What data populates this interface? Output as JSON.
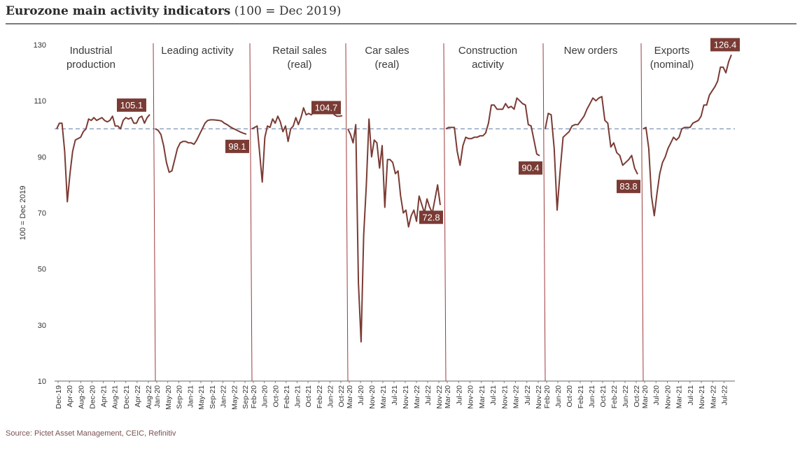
{
  "title": {
    "bold": "Eurozone main activity indicators",
    "rest": "(100 = Dec 2019)"
  },
  "source": "Source: Pictet Asset Management, CEIC, Refinitiv",
  "colors": {
    "line": "#7a3b34",
    "separator": "#9c3a3a",
    "reference": "#8fa3c4",
    "label_bg": "#7a3b34",
    "axis": "#666666"
  },
  "chart_data": {
    "type": "line",
    "ylabel": "100 = Dec 2019",
    "ylim": [
      10,
      130
    ],
    "yticks": [
      10,
      30,
      50,
      70,
      90,
      110,
      130
    ],
    "reference_line": 100,
    "panels": [
      {
        "name": "Industrial production",
        "title_lines": [
          "Industrial",
          "production"
        ],
        "xticks": [
          "Dec-19",
          "Apr-20",
          "Aug-20",
          "Dec-20",
          "Apr-21",
          "Aug-21",
          "Dec-21",
          "Apr-22",
          "Aug-22"
        ],
        "values": [
          100,
          102,
          102,
          92,
          74,
          84,
          92,
          96,
          96.5,
          97,
          99,
          100,
          103.5,
          103,
          104,
          103,
          103.5,
          104,
          103,
          102.5,
          103,
          104.5,
          101,
          101,
          100,
          103,
          104,
          103.5,
          104,
          102,
          102,
          104,
          104.5,
          102,
          104,
          105.1
        ],
        "last_label": "105.1"
      },
      {
        "name": "Leading activity",
        "title_lines": [
          "Leading activity"
        ],
        "xticks": [
          "Jan-20",
          "May-20",
          "Sep-20",
          "Jan-21",
          "May-21",
          "Sep-21",
          "Jan-22",
          "May-22",
          "Sep-22"
        ],
        "values": [
          100,
          99.5,
          98,
          94,
          88,
          84.5,
          85,
          89,
          93,
          95,
          95.5,
          95.5,
          95,
          95,
          94.5,
          96,
          98,
          100,
          102,
          103,
          103.2,
          103.2,
          103.1,
          103,
          102.8,
          102,
          101.5,
          100.8,
          100.2,
          99.8,
          99.3,
          98.8,
          98.4,
          98.1
        ],
        "last_label": "98.1"
      },
      {
        "name": "Retail sales (real)",
        "title_lines": [
          "Retail sales",
          "(real)"
        ],
        "xticks": [
          "Feb-20",
          "Jun-20",
          "Oct-20",
          "Feb-21",
          "Jun-21",
          "Oct-21",
          "Feb-22",
          "Jun-22",
          "Oct-22"
        ],
        "values": [
          100,
          100.5,
          101,
          91,
          81,
          97,
          101,
          100.5,
          103.5,
          102,
          104.5,
          102.5,
          99,
          101,
          95.5,
          100,
          101,
          104,
          101.5,
          104,
          107.5,
          105,
          105.5,
          105,
          106,
          107.5,
          106,
          106.5,
          106,
          105.5,
          105.5,
          106,
          105,
          104.5,
          104.5,
          104.7
        ],
        "last_label": "104.7"
      },
      {
        "name": "Car sales (real)",
        "title_lines": [
          "Car sales",
          "(real)"
        ],
        "xticks": [
          "Mar-20",
          "Jul-20",
          "Nov-20",
          "Mar-21",
          "Jul-21",
          "Nov-21",
          "Mar-22",
          "Jul-22",
          "Nov-22"
        ],
        "values": [
          100,
          98,
          95,
          101.5,
          45,
          24,
          62,
          80,
          103.5,
          90,
          96,
          95,
          86,
          94,
          72,
          89,
          89,
          88,
          84,
          85,
          76,
          70,
          71,
          65,
          69,
          71,
          67,
          76,
          73,
          70,
          75,
          72,
          70,
          75,
          80,
          72.8
        ],
        "last_label": "72.8"
      },
      {
        "name": "Construction activity",
        "title_lines": [
          "Construction",
          "activity"
        ],
        "xticks": [
          "Mar-20",
          "Jul-20",
          "Nov-20",
          "Mar-21",
          "Jul-21",
          "Nov-21",
          "Mar-22",
          "Jul-22",
          "Nov-22"
        ],
        "values": [
          100,
          100.5,
          100.5,
          100.5,
          92,
          87,
          94,
          97,
          96.5,
          96.5,
          97,
          97,
          97.5,
          97.5,
          98.5,
          102,
          108.5,
          108.5,
          107,
          107,
          107,
          109,
          107.5,
          108,
          107,
          111,
          110,
          109,
          108.5,
          101.5,
          101,
          96,
          91,
          90.4
        ],
        "last_label": "90.4"
      },
      {
        "name": "New orders",
        "title_lines": [
          "New orders"
        ],
        "xticks": [
          "Feb-20",
          "Jun-20",
          "Oct-20",
          "Feb-21",
          "Jun-21",
          "Oct-21",
          "Feb-22",
          "Jun-22",
          "Oct-22"
        ],
        "values": [
          100,
          105.5,
          105,
          93,
          71,
          85,
          97,
          98,
          99,
          101,
          101.5,
          101.5,
          103,
          104.5,
          107,
          109,
          111,
          110,
          111,
          111.5,
          103,
          102,
          93.5,
          95,
          91.5,
          90.5,
          87,
          88,
          89,
          90.5,
          86,
          83.8
        ],
        "last_label": "83.8"
      },
      {
        "name": "Exports (nominal)",
        "title_lines": [
          "Exports",
          "(nominal)"
        ],
        "xticks": [
          "Mar-20",
          "Jul-20",
          "Nov-20",
          "Mar-21",
          "Jul-21",
          "Nov-21",
          "Mar-22",
          "Jul-22"
        ],
        "values": [
          100,
          100.5,
          93,
          76,
          69,
          77,
          84,
          88,
          90,
          93,
          95,
          97,
          96,
          97,
          100,
          100.5,
          100.5,
          100.5,
          102,
          102.5,
          103,
          104.5,
          108.5,
          108.5,
          112,
          113.5,
          115,
          117,
          122,
          122,
          120,
          124,
          126.4
        ],
        "last_label": "126.4"
      }
    ]
  }
}
